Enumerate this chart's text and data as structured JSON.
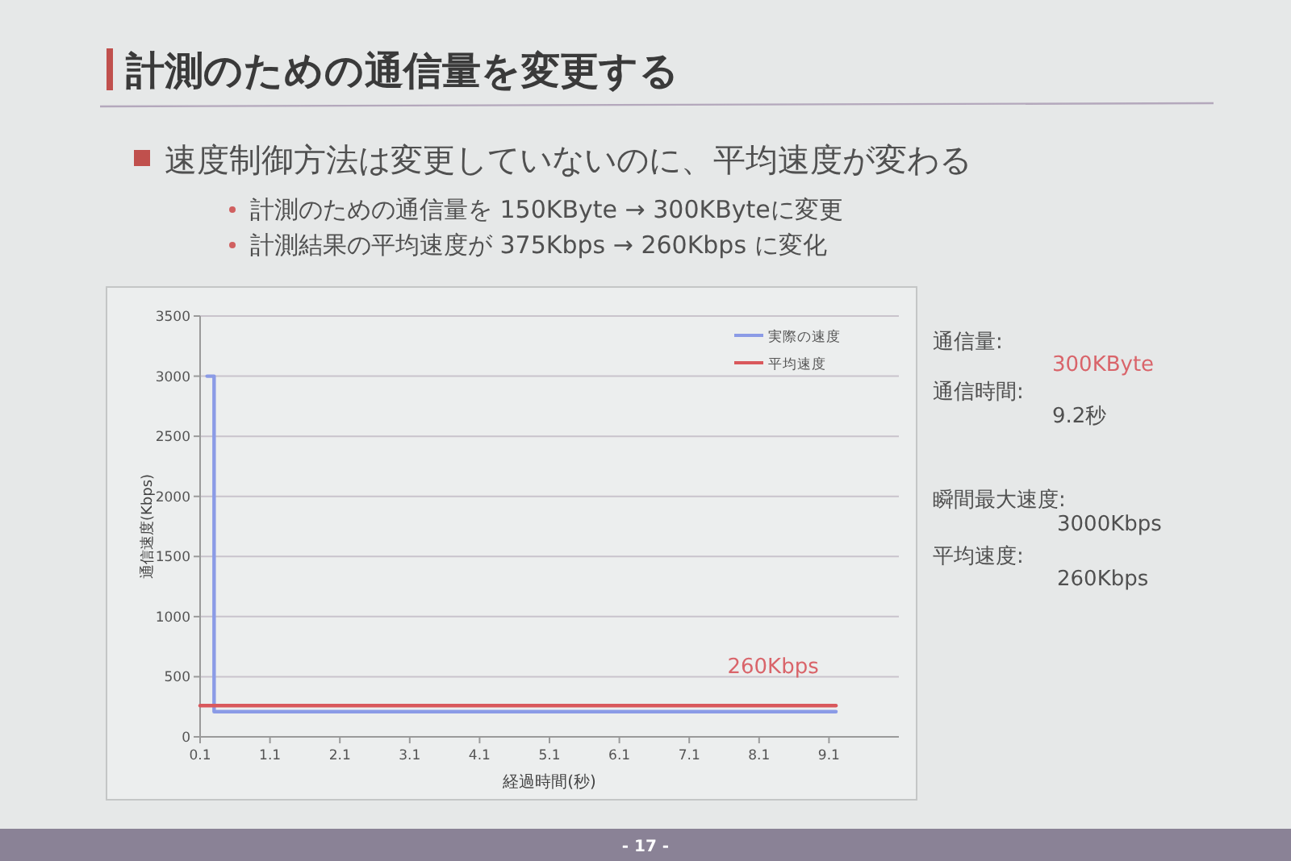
{
  "chart_data": {
    "type": "line",
    "title": "計測のための通信量を変更する",
    "subtitle": "速度制御方法は変更していないのに、平均速度が変わる",
    "xlabel": "経過時間(秒)",
    "ylabel": "通信速度(Kbps)",
    "xlim": [
      0.1,
      10.1
    ],
    "xticks": [
      0.1,
      1.1,
      2.1,
      3.1,
      4.1,
      5.1,
      6.1,
      7.1,
      8.1,
      9.1
    ],
    "ylim": [
      0,
      3500
    ],
    "yticks": [
      0,
      500,
      1000,
      1500,
      2000,
      2500,
      3000,
      3500
    ],
    "grid": "y",
    "legend": "top right",
    "series": [
      {
        "name": "実際の速度",
        "color": "#8b9be6",
        "x": [
          0.2,
          0.3,
          0.3,
          9.2
        ],
        "values": [
          3000,
          3000,
          210,
          210
        ]
      },
      {
        "name": "平均速度",
        "color": "#d9585c",
        "x": [
          0.1,
          9.2
        ],
        "values": [
          260,
          260
        ]
      }
    ],
    "annotations": [
      "計測のための通信量を 150KByte → 300KByteに変更",
      "計測結果の平均速度が 375Kbps → 260Kbps に変化",
      {
        "text": "260Kbps",
        "x": 8.3,
        "y": 260
      },
      "通信量:",
      "300KByte",
      "通信時間:",
      "9.2秒",
      "瞬間最大速度:",
      "3000Kbps",
      "平均速度:",
      "260Kbps",
      "- 17 -"
    ]
  }
}
